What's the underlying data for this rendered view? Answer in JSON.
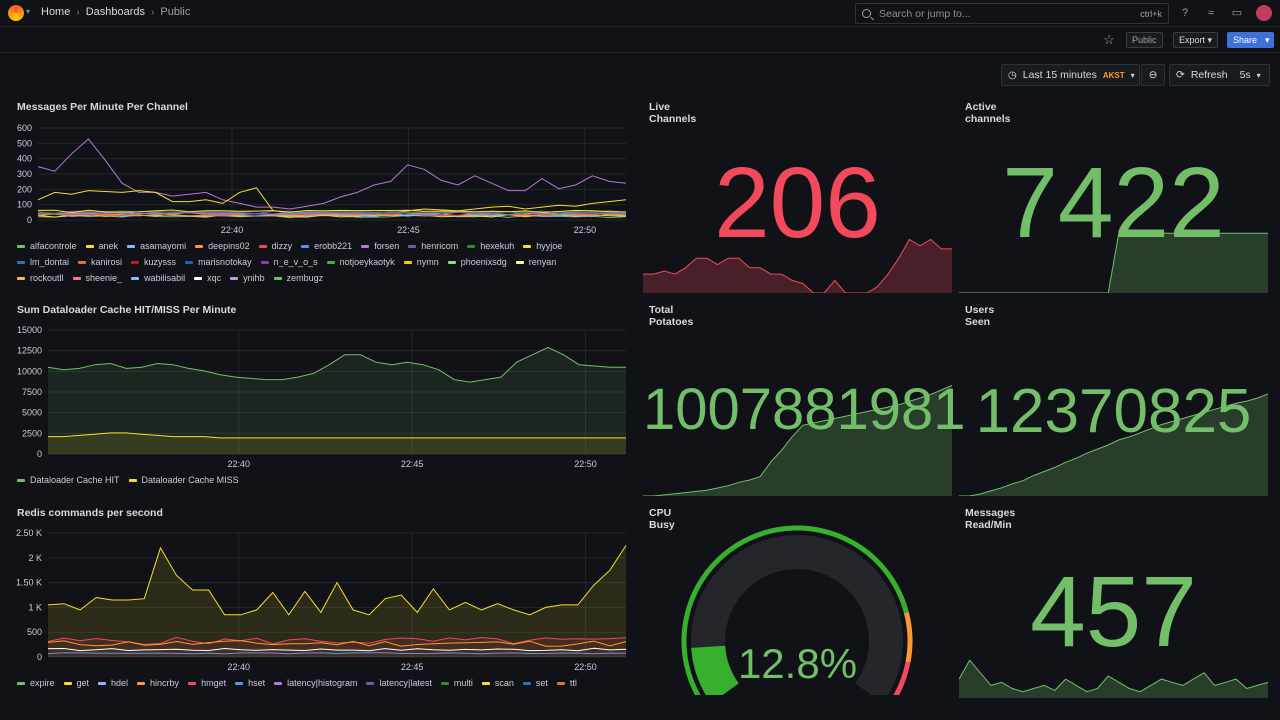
{
  "topbar": {
    "crumbs": [
      "Home",
      "Dashboards",
      "Public"
    ],
    "search_placeholder": "Search or jump to...",
    "search_shortcut": "ctrl+k"
  },
  "toolbar": {
    "public_label": "Public",
    "export_label": "Export",
    "share_label": "Share"
  },
  "timebar": {
    "range": "Last 15 minutes",
    "timezone": "AKST",
    "refresh": "Refresh",
    "interval": "5s"
  },
  "colors": {
    "green": "#73bf69",
    "red": "#f2495c",
    "yellow": "#fade2a",
    "orange": "#ff9830",
    "blue": "#5794f2",
    "purple": "#b877d9"
  },
  "panels": {
    "messages": {
      "title": "Messages Per Minute Per Channel",
      "yticks": [
        "600",
        "500",
        "400",
        "300",
        "200",
        "100",
        "0"
      ],
      "xticks": [
        "22:40",
        "22:45",
        "22:50"
      ],
      "legend": [
        {
          "name": "alfacontrole",
          "color": "#73bf69"
        },
        {
          "name": "anek",
          "color": "#fade2a"
        },
        {
          "name": "asamayomi",
          "color": "#8ab8ff"
        },
        {
          "name": "deepins02",
          "color": "#ff9830"
        },
        {
          "name": "dizzy",
          "color": "#f2495c"
        },
        {
          "name": "erobb221",
          "color": "#5794f2"
        },
        {
          "name": "forsen",
          "color": "#b877d9"
        },
        {
          "name": "henricom",
          "color": "#705da0"
        },
        {
          "name": "hexekuh",
          "color": "#37872d"
        },
        {
          "name": "hyyjoe",
          "color": "#fade2a"
        },
        {
          "name": "lm_dontai",
          "color": "#1f78c1"
        },
        {
          "name": "kanirosi",
          "color": "#e0752d"
        },
        {
          "name": "kuzysss",
          "color": "#c4162a"
        },
        {
          "name": "marisnotokay",
          "color": "#1f60c4"
        },
        {
          "name": "n_e_v_o_s",
          "color": "#8f3bb8"
        },
        {
          "name": "notjoeykaotyk",
          "color": "#56a64b"
        },
        {
          "name": "nymn",
          "color": "#f2cc0c"
        },
        {
          "name": "phoenixsdg",
          "color": "#96d98d"
        },
        {
          "name": "renyan",
          "color": "#fff899"
        },
        {
          "name": "rockoutll",
          "color": "#ffb357"
        },
        {
          "name": "sheenie_",
          "color": "#ff7383"
        },
        {
          "name": "wabilisabil",
          "color": "#8ab8ff"
        },
        {
          "name": "xqc",
          "color": "#ffffff"
        },
        {
          "name": "ynihb",
          "color": "#ca95e5"
        },
        {
          "name": "zembugz",
          "color": "#73bf69"
        }
      ]
    },
    "dataloader": {
      "title": "Sum Dataloader Cache HIT/MISS Per Minute",
      "yticks": [
        "15000",
        "12500",
        "10000",
        "7500",
        "5000",
        "2500",
        "0"
      ],
      "xticks": [
        "22:40",
        "22:45",
        "22:50"
      ],
      "legend": [
        {
          "name": "Dataloader Cache HIT",
          "color": "#73bf69"
        },
        {
          "name": "Dataloader Cache MISS",
          "color": "#fade2a"
        }
      ]
    },
    "redis": {
      "title": "Redis commands per second",
      "yticks": [
        "2.50 K",
        "2 K",
        "1.50 K",
        "1 K",
        "500",
        "0"
      ],
      "xticks": [
        "22:40",
        "22:45",
        "22:50"
      ],
      "legend": [
        {
          "name": "expire",
          "color": "#73bf69"
        },
        {
          "name": "get",
          "color": "#fade2a"
        },
        {
          "name": "hdel",
          "color": "#8ab8ff"
        },
        {
          "name": "hincrby",
          "color": "#ff9830"
        },
        {
          "name": "hmget",
          "color": "#f2495c"
        },
        {
          "name": "hset",
          "color": "#5794f2"
        },
        {
          "name": "latency|histogram",
          "color": "#b877d9"
        },
        {
          "name": "latency|latest",
          "color": "#705da0"
        },
        {
          "name": "multi",
          "color": "#37872d"
        },
        {
          "name": "scan",
          "color": "#fade2a"
        },
        {
          "name": "set",
          "color": "#1f78c1"
        },
        {
          "name": "ttl",
          "color": "#e0752d"
        }
      ]
    },
    "live": {
      "title": "Live Channels",
      "value": "206",
      "color": "#f2495c",
      "spark": [
        0.3,
        0.3,
        0.35,
        0.3,
        0.4,
        0.55,
        0.55,
        0.45,
        0.55,
        0.55,
        0.4,
        0.4,
        0.3,
        0.3,
        0.2,
        0.15,
        0.0,
        0.0,
        0.2,
        0.0,
        0.0,
        0.0,
        0.1,
        0.3,
        0.55,
        0.85,
        0.75,
        0.85,
        0.7,
        0.7
      ]
    },
    "active": {
      "title": "Active channels",
      "value": "7422",
      "color": "#73bf69",
      "spark": [
        0,
        0,
        0,
        0,
        0,
        0,
        0,
        0,
        0,
        0,
        0,
        0,
        0,
        0,
        0,
        0.95,
        0.95,
        0.95,
        0.95,
        0.95,
        0.95,
        0.95,
        0.95,
        0.95,
        0.95,
        0.95,
        0.95,
        0.95,
        0.95,
        0.95
      ]
    },
    "potatoes": {
      "title": "Total Potatoes",
      "value": "1007881981",
      "color": "#73bf69",
      "spark": [
        0,
        0,
        0.01,
        0.02,
        0.03,
        0.04,
        0.05,
        0.07,
        0.09,
        0.12,
        0.14,
        0.17,
        0.3,
        0.4,
        0.52,
        0.62,
        0.64,
        0.66,
        0.68,
        0.7,
        0.72,
        0.74,
        0.76,
        0.78,
        0.8,
        0.83,
        0.86,
        0.89,
        0.93,
        0.97
      ]
    },
    "users": {
      "title": "Users Seen",
      "value": "12370825",
      "color": "#73bf69",
      "spark": [
        0,
        0,
        0.02,
        0.05,
        0.08,
        0.12,
        0.15,
        0.2,
        0.24,
        0.28,
        0.33,
        0.37,
        0.42,
        0.46,
        0.5,
        0.55,
        0.58,
        0.62,
        0.66,
        0.7,
        0.73,
        0.76,
        0.79,
        0.82,
        0.85,
        0.88,
        0.91,
        0.93,
        0.96,
        1.0
      ]
    },
    "cpu": {
      "title": "CPU Busy",
      "value": "12.8%",
      "percent": 12.8,
      "color": "#73bf69"
    },
    "read": {
      "title": "Messages Read/Min",
      "value": "457",
      "color": "#73bf69",
      "spark": [
        0.3,
        0.6,
        0.4,
        0.2,
        0.25,
        0.15,
        0.1,
        0.15,
        0.2,
        0.12,
        0.3,
        0.2,
        0.1,
        0.15,
        0.35,
        0.25,
        0.15,
        0.1,
        0.2,
        0.3,
        0.25,
        0.2,
        0.3,
        0.4,
        0.2,
        0.25,
        0.3,
        0.15,
        0.2,
        0.25
      ]
    }
  }
}
